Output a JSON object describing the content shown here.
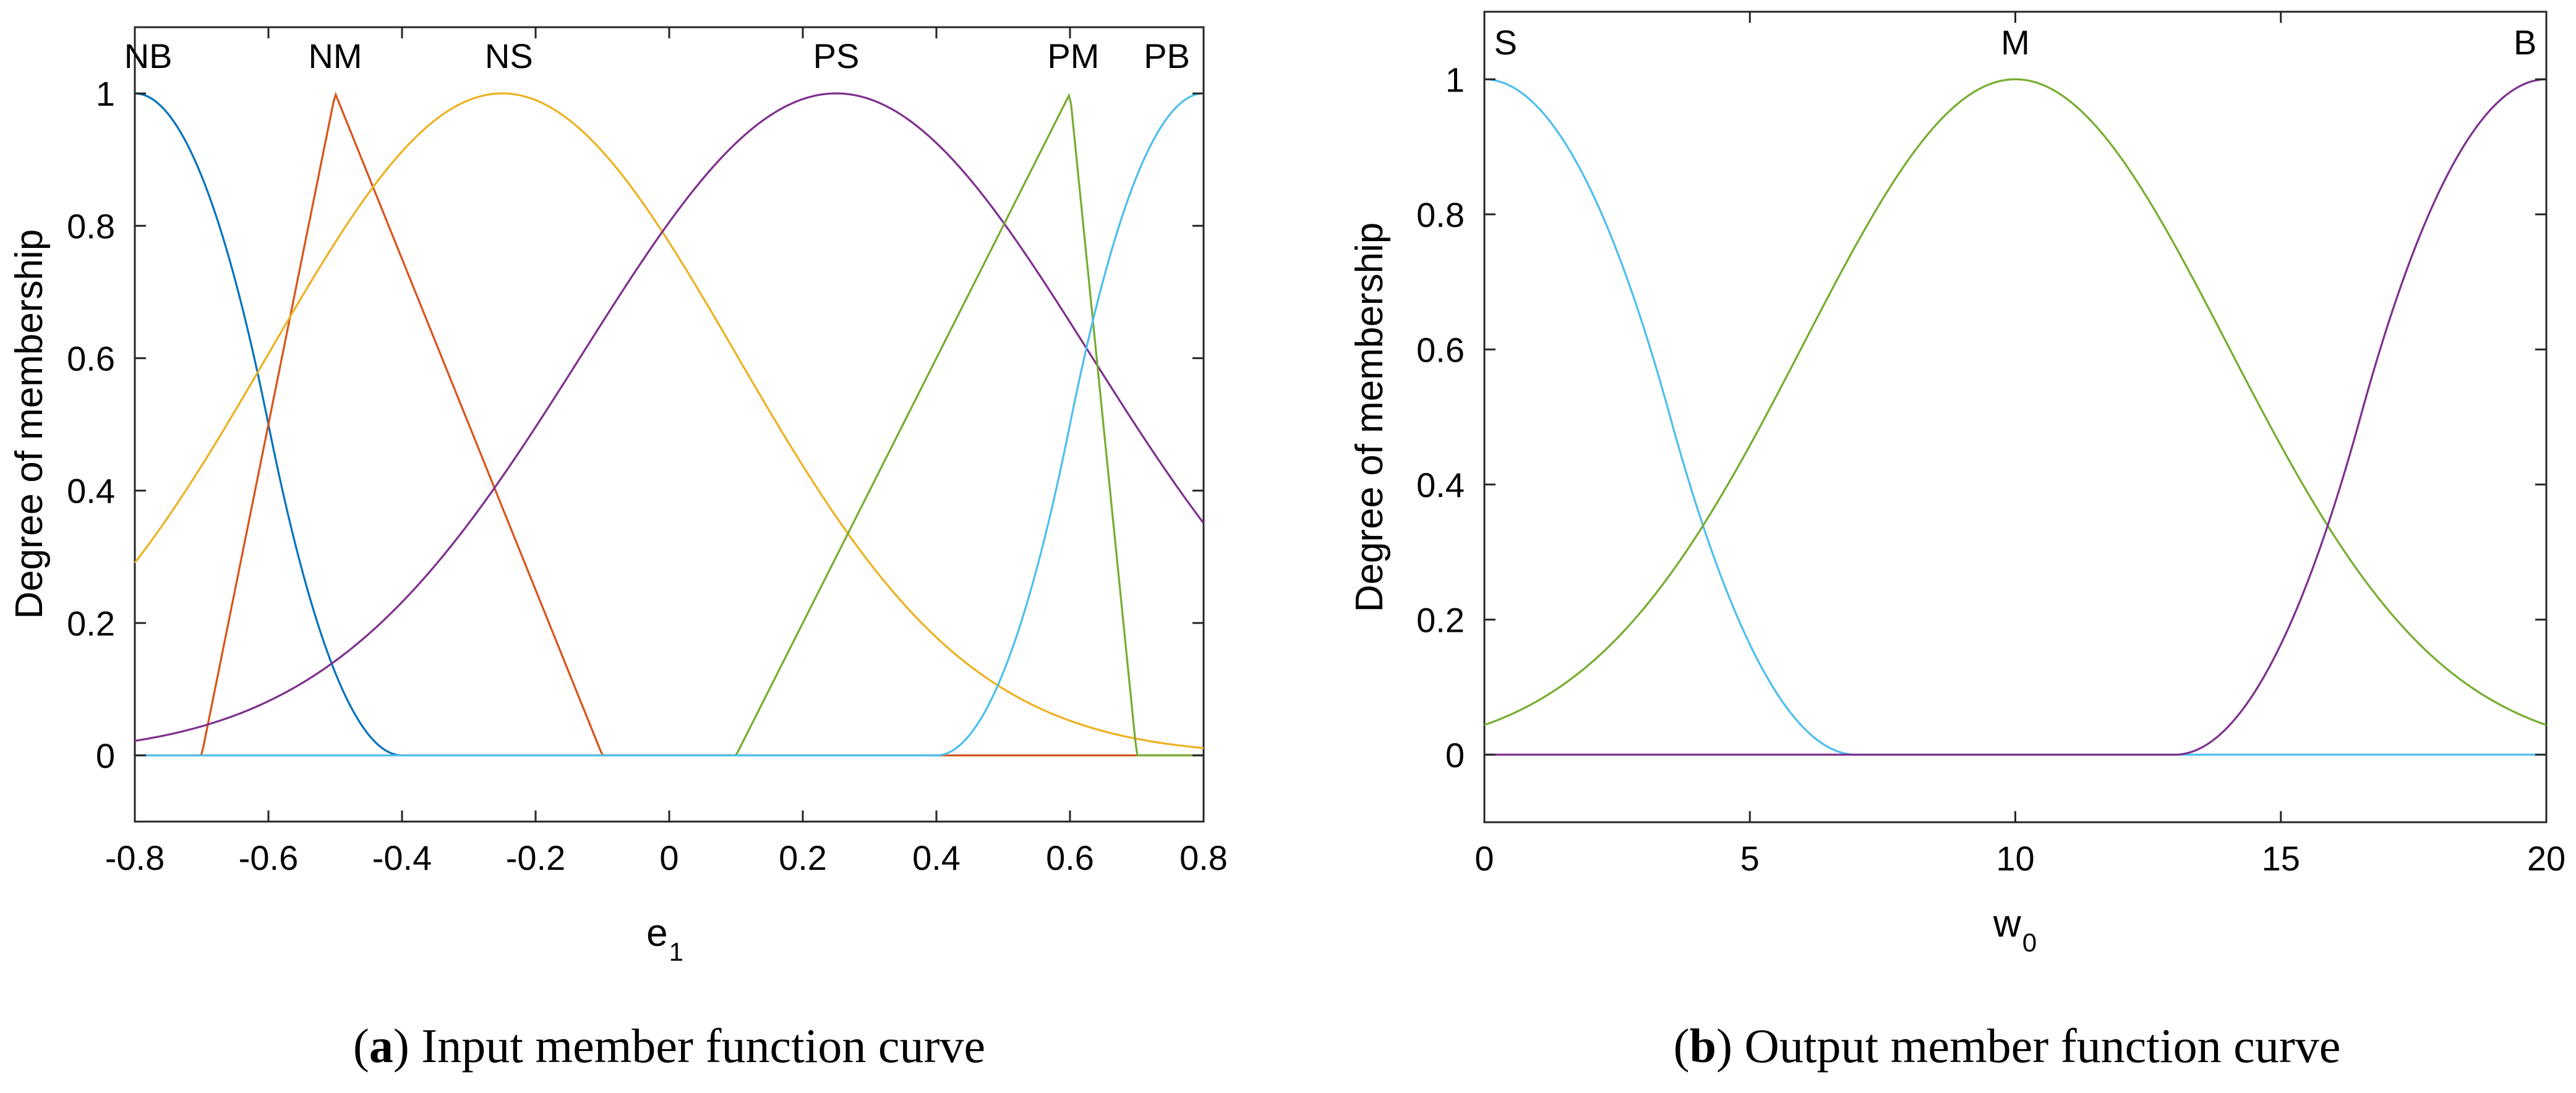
{
  "chart_data": [
    {
      "type": "line",
      "panel": "a",
      "caption_letter": "a",
      "caption_text": "Input member function curve",
      "xlabel": "e",
      "xlabel_sub": "1",
      "ylabel": "Degree of membership",
      "xlim": [
        -0.8,
        0.8
      ],
      "ylim": [
        -0.1,
        1.1
      ],
      "xticks": [
        -0.8,
        -0.6,
        -0.4,
        -0.2,
        0,
        0.2,
        0.4,
        0.6,
        0.8
      ],
      "xtick_labels": [
        "-0.8",
        "-0.6",
        "-0.4",
        "-0.2",
        "0",
        "0.2",
        "0.4",
        "0.6",
        "0.8"
      ],
      "yticks": [
        0,
        0.2,
        0.4,
        0.6,
        0.8,
        1
      ],
      "ytick_labels": [
        "0",
        "0.2",
        "0.4",
        "0.6",
        "0.8",
        "1"
      ],
      "series": [
        {
          "name": "NB",
          "shape": "zmf",
          "params": [
            -0.8,
            -0.4
          ],
          "color": "#0072BD",
          "label_x": -0.78
        },
        {
          "name": "NM",
          "shape": "trimf",
          "params": [
            -0.7,
            -0.5,
            -0.1
          ],
          "color": "#D95319",
          "label_x": -0.5
        },
        {
          "name": "NS",
          "shape": "gaussmf",
          "params": [
            0.35,
            -0.25
          ],
          "color": "#EDB120",
          "label_x": -0.24
        },
        {
          "name": "PS",
          "shape": "gaussmf",
          "params": [
            0.38,
            0.25
          ],
          "color": "#7E2F8E",
          "label_x": 0.25
        },
        {
          "name": "PM",
          "shape": "trimf",
          "params": [
            0.1,
            0.6,
            0.7
          ],
          "color": "#77AC30",
          "label_x": 0.605
        },
        {
          "name": "PB",
          "shape": "smf",
          "params": [
            0.4,
            0.8
          ],
          "color": "#4DBEEE",
          "label_x": 0.745
        }
      ]
    },
    {
      "type": "line",
      "panel": "b",
      "caption_letter": "b",
      "caption_text": "Output member function curve",
      "xlabel": "w",
      "xlabel_sub": "0",
      "ylabel": "Degree of membership",
      "xlim": [
        0,
        20
      ],
      "ylim": [
        -0.1,
        1.1
      ],
      "xticks": [
        0,
        5,
        10,
        15,
        20
      ],
      "xtick_labels": [
        "0",
        "5",
        "10",
        "15",
        "20"
      ],
      "yticks": [
        0,
        0.2,
        0.4,
        0.6,
        0.8,
        1
      ],
      "ytick_labels": [
        "0",
        "0.2",
        "0.4",
        "0.6",
        "0.8",
        "1"
      ],
      "series": [
        {
          "name": "S",
          "shape": "zmf",
          "params": [
            0,
            7
          ],
          "color": "#4DBEEE",
          "label_x": 0.4
        },
        {
          "name": "M",
          "shape": "gaussmf",
          "params": [
            4,
            10
          ],
          "color": "#77AC30",
          "label_x": 10
        },
        {
          "name": "B",
          "shape": "smf",
          "params": [
            13,
            20
          ],
          "color": "#7E2F8E",
          "label_x": 19.6
        }
      ]
    }
  ]
}
